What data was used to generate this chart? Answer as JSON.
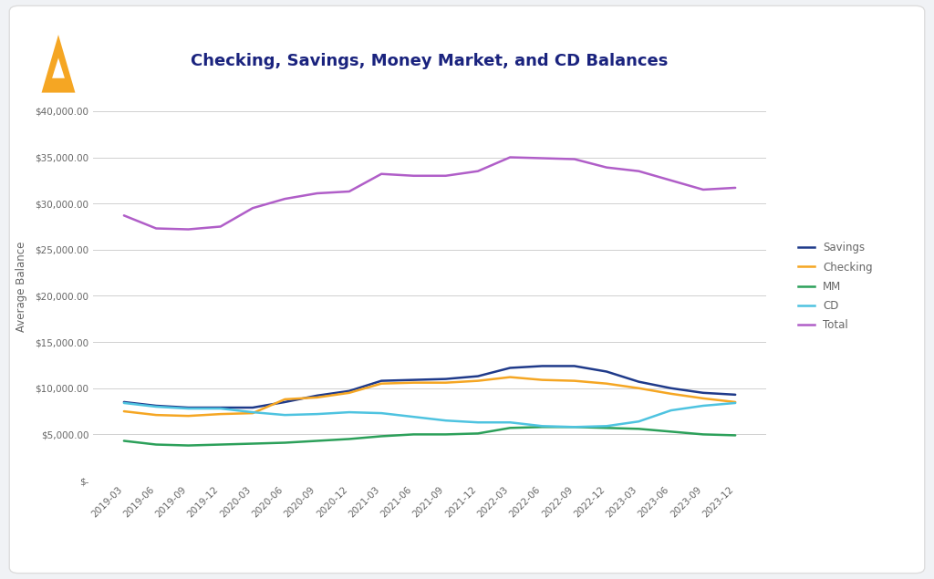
{
  "title": "Checking, Savings, Money Market, and CD Balances",
  "ylabel": "Average Balance",
  "x_labels": [
    "2019-03",
    "2019-06",
    "2019-09",
    "2019-12",
    "2020-03",
    "2020-06",
    "2020-09",
    "2020-12",
    "2021-03",
    "2021-06",
    "2021-09",
    "2021-12",
    "2022-03",
    "2022-06",
    "2022-09",
    "2022-12",
    "2023-03",
    "2023-06",
    "2023-09",
    "2023-12"
  ],
  "series": {
    "Savings": {
      "color": "#1f3a8a",
      "linewidth": 1.8,
      "data": [
        8500,
        8100,
        7900,
        7900,
        7900,
        8500,
        9200,
        9700,
        10800,
        10900,
        11000,
        11300,
        12200,
        12400,
        12400,
        11800,
        10700,
        10000,
        9500,
        9300
      ]
    },
    "Checking": {
      "color": "#f5a623",
      "linewidth": 1.8,
      "data": [
        7500,
        7100,
        7000,
        7200,
        7300,
        8800,
        9000,
        9500,
        10500,
        10600,
        10600,
        10800,
        11200,
        10900,
        10800,
        10500,
        10000,
        9400,
        8900,
        8500
      ]
    },
    "MM": {
      "color": "#2ca05a",
      "linewidth": 1.8,
      "data": [
        4300,
        3900,
        3800,
        3900,
        4000,
        4100,
        4300,
        4500,
        4800,
        5000,
        5000,
        5100,
        5700,
        5800,
        5800,
        5700,
        5600,
        5300,
        5000,
        4900
      ]
    },
    "CD": {
      "color": "#4ec3e0",
      "linewidth": 1.8,
      "data": [
        8400,
        8000,
        7800,
        7800,
        7400,
        7100,
        7200,
        7400,
        7300,
        6900,
        6500,
        6300,
        6300,
        5900,
        5800,
        5900,
        6400,
        7600,
        8100,
        8400
      ]
    },
    "Total": {
      "color": "#b05ec8",
      "linewidth": 1.8,
      "data": [
        28700,
        27300,
        27200,
        27500,
        29500,
        30500,
        31100,
        31300,
        33200,
        33000,
        33000,
        33500,
        35000,
        34900,
        34800,
        33900,
        33500,
        32500,
        31500,
        31700
      ]
    }
  },
  "ylim": [
    0,
    42000
  ],
  "yticks": [
    0,
    5000,
    10000,
    15000,
    20000,
    25000,
    30000,
    35000,
    40000
  ],
  "ytick_labels": [
    "$-",
    "$5,000.00",
    "$10,000.00",
    "$15,000.00",
    "$20,000.00",
    "$25,000.00",
    "$30,000.00",
    "$35,000.00",
    "$40,000.00"
  ],
  "outer_bg": "#f0f2f5",
  "card_bg": "#ffffff",
  "grid_color": "#d0d0d0",
  "title_color": "#1a237e",
  "title_fontsize": 13,
  "label_fontsize": 8.5,
  "tick_fontsize": 7.5,
  "legend_fontsize": 8.5,
  "tick_color": "#666666",
  "logo_color": "#f5a623"
}
